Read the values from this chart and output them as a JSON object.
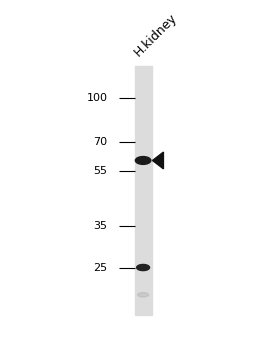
{
  "fig_width": 2.56,
  "fig_height": 3.63,
  "dpi": 100,
  "bg_color": "#ffffff",
  "lane_label": "H.kidney",
  "lane_label_fontsize": 9,
  "mw_markers": [
    100,
    70,
    55,
    35,
    25
  ],
  "mw_fontsize": 8,
  "tick_linewidth": 0.8,
  "lane_color": "#dcdcdc",
  "band1_mw": 60,
  "band2_mw": 25,
  "band3_mw": 20,
  "arrow_color": "#111111",
  "band1_color": "#1a1a1a",
  "band2_color": "#222222",
  "band3_color": "#aaaaaa"
}
